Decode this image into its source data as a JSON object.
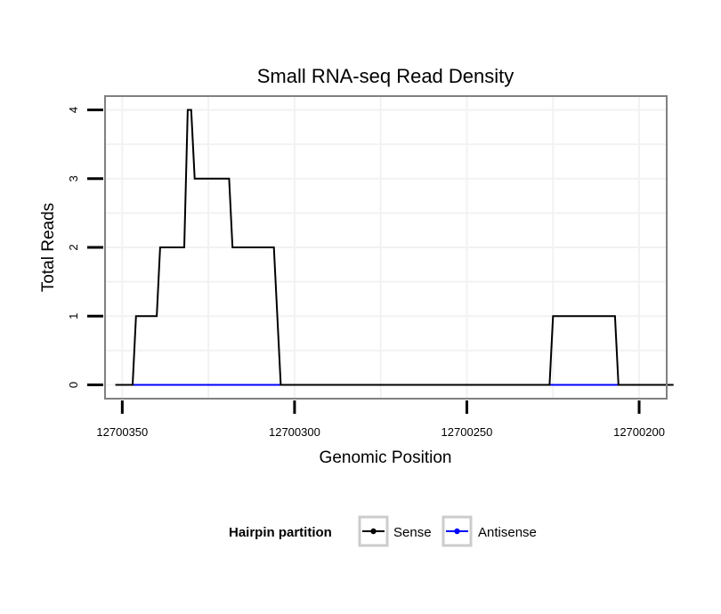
{
  "chart_data": {
    "type": "line",
    "title": "Small RNA-seq Read Density",
    "xlabel": "Genomic Position",
    "ylabel": "Total Reads",
    "x_reversed": true,
    "xlim": [
      12700355,
      12700192
    ],
    "ylim": [
      -0.2,
      4.2
    ],
    "x_ticks": [
      12700350,
      12700300,
      12700250,
      12700200
    ],
    "x_tick_labels": [
      "12700350",
      "12700300",
      "12700250",
      "12700200"
    ],
    "y_ticks": [
      0,
      1,
      2,
      3,
      4
    ],
    "y_tick_labels": [
      "0",
      "1",
      "2",
      "3",
      "4"
    ],
    "grid": true,
    "legend": {
      "title": "Hairpin partition",
      "position": "bottom",
      "entries": [
        {
          "name": "Sense",
          "color": "#000000"
        },
        {
          "name": "Antisense",
          "color": "#0000ff"
        }
      ]
    },
    "series": [
      {
        "name": "Sense",
        "color": "#000000",
        "x": [
          12700352,
          12700347,
          12700346,
          12700340,
          12700339,
          12700332,
          12700331,
          12700330,
          12700329,
          12700328,
          12700327,
          12700319,
          12700318,
          12700306,
          12700304,
          12700302,
          12700278,
          12700226,
          12700225,
          12700207,
          12700206,
          12700190
        ],
        "y": [
          0,
          0,
          1,
          1,
          2,
          2,
          4,
          4,
          3,
          3,
          3,
          3,
          2,
          2,
          0,
          0,
          0,
          0,
          1,
          1,
          0,
          0
        ]
      },
      {
        "name": "Antisense",
        "color": "#0000ff",
        "x": [
          12700347,
          12700304,
          12700225,
          12700206
        ],
        "y": [
          0,
          0,
          0,
          0
        ]
      }
    ]
  }
}
